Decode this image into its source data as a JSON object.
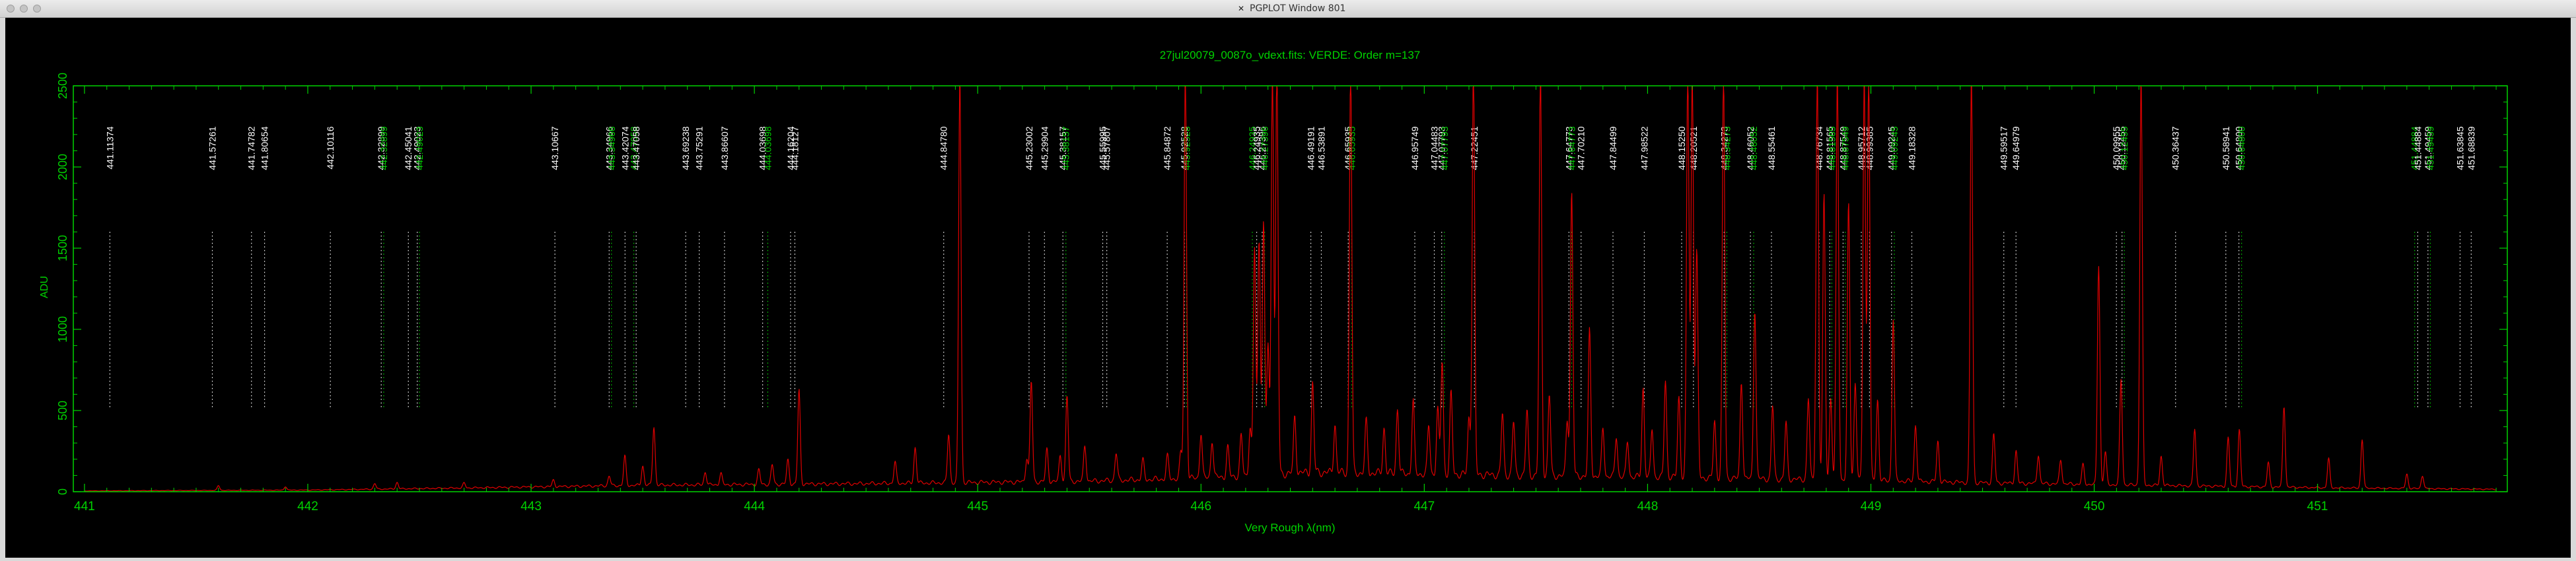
{
  "window": {
    "title": "PGPLOT Window 801",
    "icon": "x11-icon",
    "traffic_lights": [
      "close",
      "minimize",
      "zoom"
    ]
  },
  "colors": {
    "frame": "#00d200",
    "trace": "#e00000",
    "marker_white": "#ffffff",
    "marker_green": "#00d200",
    "background": "#000000"
  },
  "chart_data": {
    "type": "line",
    "title": "27jul20079_0087o_vdext.fits: VERDE: Order m=137",
    "xlabel": "Very Rough λ(nm)",
    "ylabel": "ADU",
    "xlim": [
      440.95,
      451.85
    ],
    "ylim": [
      0,
      2500
    ],
    "x_ticks": [
      441,
      442,
      443,
      444,
      445,
      446,
      447,
      448,
      449,
      450,
      451
    ],
    "y_ticks": [
      0,
      500,
      1000,
      1500,
      2000,
      2500
    ],
    "grid": false,
    "continuum": [
      [
        441.0,
        5
      ],
      [
        442.0,
        10
      ],
      [
        442.8,
        25
      ],
      [
        443.5,
        40
      ],
      [
        444.5,
        50
      ],
      [
        445.5,
        65
      ],
      [
        446.0,
        85
      ],
      [
        446.5,
        120
      ],
      [
        447.0,
        110
      ],
      [
        447.5,
        100
      ],
      [
        448.0,
        90
      ],
      [
        448.5,
        80
      ],
      [
        449.0,
        70
      ],
      [
        449.5,
        55
      ],
      [
        450.0,
        45
      ],
      [
        450.5,
        35
      ],
      [
        451.0,
        25
      ],
      [
        451.8,
        15
      ]
    ],
    "emission_lines": [
      {
        "x": 441.6,
        "y": 30
      },
      {
        "x": 441.9,
        "y": 22
      },
      {
        "x": 442.3,
        "y": 35
      },
      {
        "x": 442.4,
        "y": 40
      },
      {
        "x": 442.7,
        "y": 30
      },
      {
        "x": 443.1,
        "y": 40
      },
      {
        "x": 443.35,
        "y": 60
      },
      {
        "x": 443.42,
        "y": 180
      },
      {
        "x": 443.5,
        "y": 120
      },
      {
        "x": 443.55,
        "y": 130
      },
      {
        "x": 443.55,
        "y": 230
      },
      {
        "x": 443.78,
        "y": 80
      },
      {
        "x": 443.85,
        "y": 70
      },
      {
        "x": 444.02,
        "y": 90
      },
      {
        "x": 444.08,
        "y": 120
      },
      {
        "x": 444.15,
        "y": 150
      },
      {
        "x": 444.2,
        "y": 580
      },
      {
        "x": 444.63,
        "y": 130
      },
      {
        "x": 444.72,
        "y": 220
      },
      {
        "x": 444.87,
        "y": 300
      },
      {
        "x": 444.92,
        "y": 2500
      },
      {
        "x": 445.22,
        "y": 150
      },
      {
        "x": 445.24,
        "y": 620
      },
      {
        "x": 445.31,
        "y": 200
      },
      {
        "x": 445.37,
        "y": 160
      },
      {
        "x": 445.4,
        "y": 530
      },
      {
        "x": 445.48,
        "y": 220
      },
      {
        "x": 445.62,
        "y": 170
      },
      {
        "x": 445.74,
        "y": 120
      },
      {
        "x": 445.85,
        "y": 140
      },
      {
        "x": 445.91,
        "y": 160
      },
      {
        "x": 445.93,
        "y": 2500
      },
      {
        "x": 446.0,
        "y": 280
      },
      {
        "x": 446.05,
        "y": 230
      },
      {
        "x": 446.12,
        "y": 180
      },
      {
        "x": 446.18,
        "y": 250
      },
      {
        "x": 446.22,
        "y": 300
      },
      {
        "x": 446.24,
        "y": 1400
      },
      {
        "x": 446.26,
        "y": 1450
      },
      {
        "x": 446.28,
        "y": 1550
      },
      {
        "x": 446.3,
        "y": 800
      },
      {
        "x": 446.32,
        "y": 2500
      },
      {
        "x": 446.34,
        "y": 2500
      },
      {
        "x": 446.42,
        "y": 350
      },
      {
        "x": 446.5,
        "y": 550
      },
      {
        "x": 446.6,
        "y": 300
      },
      {
        "x": 446.67,
        "y": 2500
      },
      {
        "x": 446.74,
        "y": 320
      },
      {
        "x": 446.82,
        "y": 280
      },
      {
        "x": 446.88,
        "y": 400
      },
      {
        "x": 446.95,
        "y": 450
      },
      {
        "x": 447.02,
        "y": 300
      },
      {
        "x": 447.06,
        "y": 400
      },
      {
        "x": 447.08,
        "y": 700
      },
      {
        "x": 447.12,
        "y": 500
      },
      {
        "x": 447.2,
        "y": 350
      },
      {
        "x": 447.22,
        "y": 2500
      },
      {
        "x": 447.35,
        "y": 380
      },
      {
        "x": 447.4,
        "y": 330
      },
      {
        "x": 447.46,
        "y": 400
      },
      {
        "x": 447.52,
        "y": 2500
      },
      {
        "x": 447.56,
        "y": 500
      },
      {
        "x": 447.64,
        "y": 350
      },
      {
        "x": 447.66,
        "y": 1750
      },
      {
        "x": 447.74,
        "y": 900
      },
      {
        "x": 447.8,
        "y": 300
      },
      {
        "x": 447.86,
        "y": 250
      },
      {
        "x": 447.91,
        "y": 220
      },
      {
        "x": 447.98,
        "y": 550
      },
      {
        "x": 448.02,
        "y": 300
      },
      {
        "x": 448.08,
        "y": 600
      },
      {
        "x": 448.14,
        "y": 500
      },
      {
        "x": 448.18,
        "y": 2500
      },
      {
        "x": 448.2,
        "y": 2500
      },
      {
        "x": 448.22,
        "y": 1400
      },
      {
        "x": 448.3,
        "y": 350
      },
      {
        "x": 448.34,
        "y": 2500
      },
      {
        "x": 448.42,
        "y": 600
      },
      {
        "x": 448.48,
        "y": 1050
      },
      {
        "x": 448.56,
        "y": 450
      },
      {
        "x": 448.62,
        "y": 350
      },
      {
        "x": 448.72,
        "y": 500
      },
      {
        "x": 448.76,
        "y": 2500
      },
      {
        "x": 448.79,
        "y": 1750
      },
      {
        "x": 448.82,
        "y": 500
      },
      {
        "x": 448.85,
        "y": 2500
      },
      {
        "x": 448.9,
        "y": 1700
      },
      {
        "x": 448.93,
        "y": 600
      },
      {
        "x": 448.97,
        "y": 2500
      },
      {
        "x": 448.99,
        "y": 2500
      },
      {
        "x": 449.03,
        "y": 500
      },
      {
        "x": 449.1,
        "y": 1000
      },
      {
        "x": 449.2,
        "y": 350
      },
      {
        "x": 449.3,
        "y": 250
      },
      {
        "x": 449.45,
        "y": 2500
      },
      {
        "x": 449.55,
        "y": 300
      },
      {
        "x": 449.65,
        "y": 200
      },
      {
        "x": 449.75,
        "y": 180
      },
      {
        "x": 449.85,
        "y": 150
      },
      {
        "x": 449.95,
        "y": 120
      },
      {
        "x": 450.02,
        "y": 1350
      },
      {
        "x": 450.05,
        "y": 200
      },
      {
        "x": 450.12,
        "y": 650
      },
      {
        "x": 450.21,
        "y": 2500
      },
      {
        "x": 450.3,
        "y": 180
      },
      {
        "x": 450.45,
        "y": 350
      },
      {
        "x": 450.6,
        "y": 300
      },
      {
        "x": 450.65,
        "y": 350
      },
      {
        "x": 450.78,
        "y": 150
      },
      {
        "x": 450.85,
        "y": 500
      },
      {
        "x": 451.05,
        "y": 180
      },
      {
        "x": 451.2,
        "y": 300
      },
      {
        "x": 451.4,
        "y": 90
      },
      {
        "x": 451.47,
        "y": 80
      }
    ],
    "reference_lines": [
      {
        "label": "441.11374",
        "x": 441.11374,
        "color": "white"
      },
      {
        "label": "441.57261",
        "x": 441.57261,
        "color": "white"
      },
      {
        "label": "441.74782",
        "x": 441.74782,
        "color": "white"
      },
      {
        "label": "441.80654",
        "x": 441.80654,
        "color": "white"
      },
      {
        "label": "442.10116",
        "x": 442.10116,
        "color": "white"
      },
      {
        "label": "442.32899",
        "x": 442.32899,
        "color": "white"
      },
      {
        "label": "442.32899",
        "x": 442.34,
        "color": "green"
      },
      {
        "label": "442.45041",
        "x": 442.45041,
        "color": "white"
      },
      {
        "label": "442.49023",
        "x": 442.49023,
        "color": "white"
      },
      {
        "label": "442.49023",
        "x": 442.5,
        "color": "green"
      },
      {
        "label": "443.10667",
        "x": 443.10667,
        "color": "white"
      },
      {
        "label": "443.34966",
        "x": 443.34966,
        "color": "white"
      },
      {
        "label": "443.34966",
        "x": 443.36,
        "color": "green"
      },
      {
        "label": "443.42074",
        "x": 443.42074,
        "color": "white"
      },
      {
        "label": "443.47058",
        "x": 443.46,
        "color": "green"
      },
      {
        "label": "443.47058",
        "x": 443.47058,
        "color": "white"
      },
      {
        "label": "443.69238",
        "x": 443.69238,
        "color": "white"
      },
      {
        "label": "443.75291",
        "x": 443.75291,
        "color": "white"
      },
      {
        "label": "443.86607",
        "x": 443.86607,
        "color": "white"
      },
      {
        "label": "444.03698",
        "x": 444.03698,
        "color": "white"
      },
      {
        "label": "444.03698",
        "x": 444.06,
        "color": "green"
      },
      {
        "label": "444.16204",
        "x": 444.16204,
        "color": "white"
      },
      {
        "label": "444.18127",
        "x": 444.18127,
        "color": "white"
      },
      {
        "label": "444.84780",
        "x": 444.8478,
        "color": "white"
      },
      {
        "label": "445.23002",
        "x": 445.23002,
        "color": "white"
      },
      {
        "label": "445.29904",
        "x": 445.29904,
        "color": "white"
      },
      {
        "label": "445.38157",
        "x": 445.38157,
        "color": "white"
      },
      {
        "label": "445.38157",
        "x": 445.395,
        "color": "green"
      },
      {
        "label": "445.55995",
        "x": 445.55995,
        "color": "white"
      },
      {
        "label": "445.57807",
        "x": 445.57807,
        "color": "white"
      },
      {
        "label": "445.84872",
        "x": 445.84872,
        "color": "white"
      },
      {
        "label": "445.92528",
        "x": 445.92528,
        "color": "white"
      },
      {
        "label": "445.92528",
        "x": 445.935,
        "color": "green"
      },
      {
        "label": "446.24935",
        "x": 446.23,
        "color": "green"
      },
      {
        "label": "446.24935",
        "x": 446.24935,
        "color": "white"
      },
      {
        "label": "446.27396",
        "x": 446.27396,
        "color": "white"
      },
      {
        "label": "446.27396",
        "x": 446.285,
        "color": "green"
      },
      {
        "label": "446.49191",
        "x": 446.49191,
        "color": "white"
      },
      {
        "label": "446.53891",
        "x": 446.53891,
        "color": "white"
      },
      {
        "label": "446.65935",
        "x": 446.65935,
        "color": "white"
      },
      {
        "label": "446.65935",
        "x": 446.675,
        "color": "green"
      },
      {
        "label": "446.95749",
        "x": 446.95749,
        "color": "white"
      },
      {
        "label": "447.04483",
        "x": 447.04483,
        "color": "white"
      },
      {
        "label": "447.07793",
        "x": 447.07793,
        "color": "white"
      },
      {
        "label": "447.07793",
        "x": 447.09,
        "color": "green"
      },
      {
        "label": "447.22451",
        "x": 447.22451,
        "color": "white"
      },
      {
        "label": "447.64773",
        "x": 447.64773,
        "color": "white"
      },
      {
        "label": "447.64773",
        "x": 447.66,
        "color": "green"
      },
      {
        "label": "447.70210",
        "x": 447.7021,
        "color": "white"
      },
      {
        "label": "447.84499",
        "x": 447.84499,
        "color": "white"
      },
      {
        "label": "447.98522",
        "x": 447.98522,
        "color": "white"
      },
      {
        "label": "448.15250",
        "x": 448.1525,
        "color": "white"
      },
      {
        "label": "448.20521",
        "x": 448.20521,
        "color": "white"
      },
      {
        "label": "448.34273",
        "x": 448.34273,
        "color": "white"
      },
      {
        "label": "448.34273",
        "x": 448.355,
        "color": "green"
      },
      {
        "label": "448.46052",
        "x": 448.46052,
        "color": "white"
      },
      {
        "label": "448.46052",
        "x": 448.475,
        "color": "green"
      },
      {
        "label": "448.55461",
        "x": 448.55461,
        "color": "white"
      },
      {
        "label": "448.76734",
        "x": 448.76734,
        "color": "white"
      },
      {
        "label": "448.81565",
        "x": 448.81565,
        "color": "white"
      },
      {
        "label": "448.81565",
        "x": 448.825,
        "color": "green"
      },
      {
        "label": "448.87549",
        "x": 448.87549,
        "color": "white"
      },
      {
        "label": "448.87549",
        "x": 448.885,
        "color": "green"
      },
      {
        "label": "448.95712",
        "x": 448.95712,
        "color": "white"
      },
      {
        "label": "448.99385",
        "x": 448.99385,
        "color": "white"
      },
      {
        "label": "449.09245",
        "x": 449.09245,
        "color": "white"
      },
      {
        "label": "449.09245",
        "x": 449.105,
        "color": "green"
      },
      {
        "label": "449.18328",
        "x": 449.18328,
        "color": "white"
      },
      {
        "label": "449.59517",
        "x": 449.59517,
        "color": "white"
      },
      {
        "label": "449.64979",
        "x": 449.64979,
        "color": "white"
      },
      {
        "label": "450.09955",
        "x": 450.09955,
        "color": "white"
      },
      {
        "label": "450.12455",
        "x": 450.12455,
        "color": "white"
      },
      {
        "label": "450.12455",
        "x": 450.135,
        "color": "green"
      },
      {
        "label": "450.36437",
        "x": 450.36437,
        "color": "white"
      },
      {
        "label": "450.58941",
        "x": 450.58941,
        "color": "white"
      },
      {
        "label": "450.64800",
        "x": 450.648,
        "color": "white"
      },
      {
        "label": "450.64800",
        "x": 450.66,
        "color": "green"
      },
      {
        "label": "451.44884",
        "x": 451.435,
        "color": "green"
      },
      {
        "label": "451.44884",
        "x": 451.44884,
        "color": "white"
      },
      {
        "label": "451.49459",
        "x": 451.49459,
        "color": "white"
      },
      {
        "label": "451.49459",
        "x": 451.505,
        "color": "green"
      },
      {
        "label": "451.63845",
        "x": 451.63845,
        "color": "white"
      },
      {
        "label": "451.68839",
        "x": 451.68839,
        "color": "white"
      }
    ]
  }
}
